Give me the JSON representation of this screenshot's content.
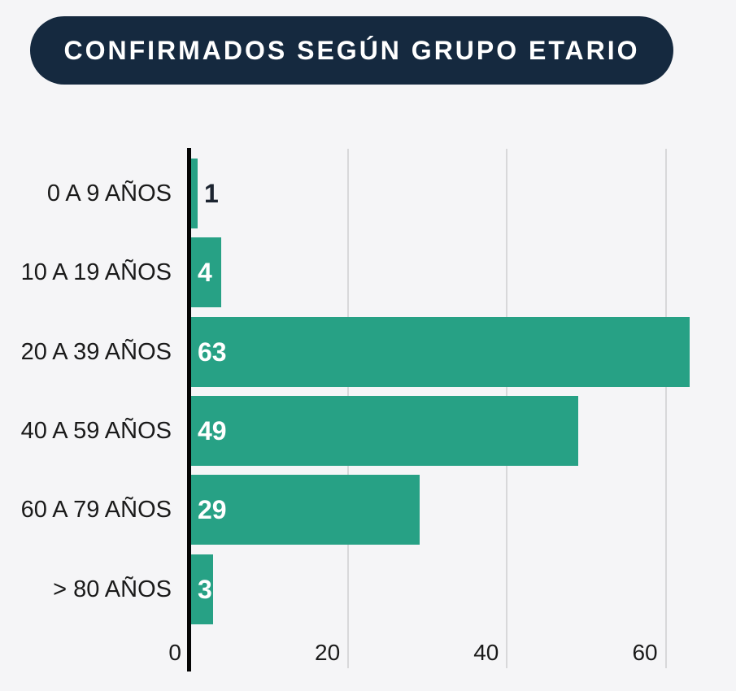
{
  "page": {
    "title": "CONFIRMADOS SEGÚN GRUPO ETARIO"
  },
  "colors": {
    "background": "#f5f5f7",
    "title_background": "#15293f",
    "title_text": "#ffffff",
    "bar": "#27a185",
    "value_label_inside": "#ffffff",
    "value_label_outside": "#1c2430",
    "category_label": "#1a1a1a",
    "tick_label": "#1a1a1a",
    "axis_line": "#050505",
    "gridline": "#d8d8da"
  },
  "chart_data": {
    "type": "bar",
    "orientation": "horizontal",
    "title": "CONFIRMADOS SEGÚN GRUPO ETARIO",
    "categories": [
      "0 A 9 AÑOS",
      "10 A 19 AÑOS",
      "20 A 39 AÑOS",
      "40 A 59 AÑOS",
      "60 A 79 AÑOS",
      "> 80 AÑOS"
    ],
    "values": [
      1,
      4,
      63,
      49,
      29,
      3
    ],
    "x_ticks": [
      0,
      20,
      40,
      60
    ],
    "xlim": [
      0,
      65
    ],
    "xlabel": "",
    "ylabel": "",
    "grid": true,
    "legend": false
  }
}
